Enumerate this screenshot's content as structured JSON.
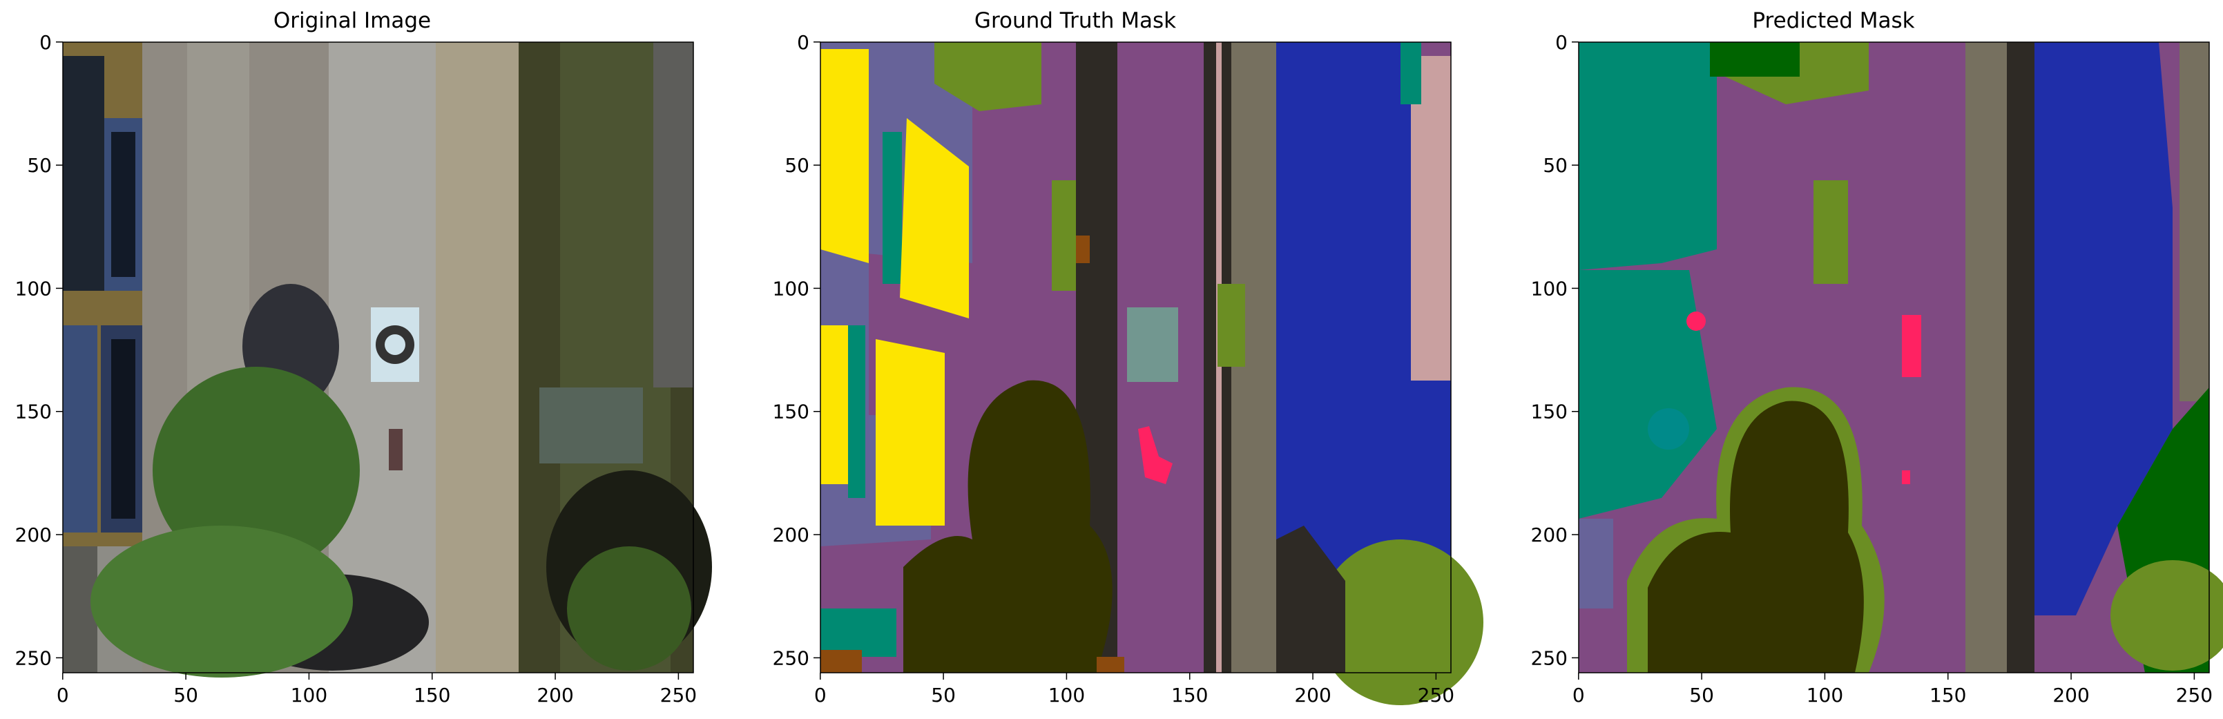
{
  "panels": [
    {
      "id": "original",
      "title": "Original Image",
      "x_ticks": [
        "0",
        "50",
        "100",
        "150",
        "200",
        "250"
      ],
      "y_ticks": [
        "0",
        "50",
        "100",
        "150",
        "200",
        "250"
      ]
    },
    {
      "id": "ground-truth",
      "title": "Ground Truth Mask",
      "x_ticks": [
        "0",
        "50",
        "100",
        "150",
        "200",
        "250"
      ],
      "y_ticks": [
        "0",
        "50",
        "100",
        "150",
        "200",
        "250"
      ]
    },
    {
      "id": "predicted",
      "title": "Predicted Mask",
      "x_ticks": [
        "0",
        "50",
        "100",
        "150",
        "200",
        "250"
      ],
      "y_ticks": [
        "0",
        "50",
        "100",
        "150",
        "200",
        "250"
      ]
    }
  ],
  "image_size": 256,
  "tick_values": [
    0,
    50,
    100,
    150,
    200,
    250
  ],
  "colors": {
    "paved_area": "#7f4a82",
    "vegetation": "#6b8e23",
    "tree": "#333300",
    "gravel": "#76705f",
    "dirt": "#2e2a25",
    "water": "#1f2ea9",
    "window": "#fde500",
    "wall": "#676399",
    "roof": "#008a72",
    "person": "#ff2262",
    "fence": "#c9a0a0",
    "sign": "#729790",
    "dark_green": "#006400"
  }
}
